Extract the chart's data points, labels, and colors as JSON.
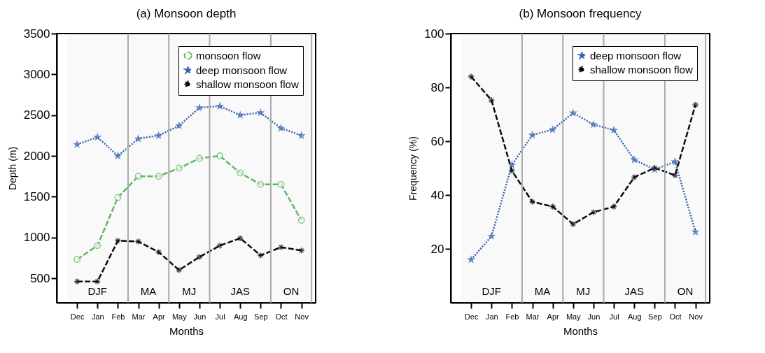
{
  "chart_data": [
    {
      "type": "line",
      "title": "(a) Monsoon depth",
      "xlabel": "Months",
      "ylabel": "Depth (m)",
      "categories": [
        "Dec",
        "Jan",
        "Feb",
        "Mar",
        "Apr",
        "May",
        "Jun",
        "Jul",
        "Aug",
        "Sep",
        "Oct",
        "Nov"
      ],
      "ylim": [
        200,
        3500
      ],
      "yticks": [
        500,
        1000,
        1500,
        2000,
        2500,
        3000,
        3500
      ],
      "series": [
        {
          "name": "monsoon flow",
          "color": "#5cb85c",
          "marker": "circle",
          "line_style": "dashed",
          "values": [
            730,
            900,
            1490,
            1750,
            1750,
            1850,
            1970,
            2000,
            1790,
            1650,
            1650,
            1210
          ]
        },
        {
          "name": "deep monsoon flow",
          "color": "#2f5fb3",
          "marker": "star",
          "line_style": "dotted",
          "values": [
            2140,
            2230,
            2000,
            2210,
            2250,
            2370,
            2590,
            2610,
            2500,
            2530,
            2340,
            2250
          ]
        },
        {
          "name": "shallow monsoon flow",
          "color": "#000000",
          "marker": "cross",
          "line_style": "dashed",
          "values": [
            460,
            460,
            960,
            950,
            820,
            600,
            760,
            900,
            990,
            780,
            880,
            840
          ]
        }
      ],
      "bands": [
        {
          "axis": "x",
          "from": "Dec",
          "to": "Feb",
          "label": "DJF",
          "color": "#aaaaaa"
        },
        {
          "axis": "x",
          "from": "Mar",
          "to": "Apr",
          "label": "MA",
          "color": "#aaaaaa"
        },
        {
          "axis": "x",
          "from": "May",
          "to": "Jun",
          "label": "MJ",
          "color": "#aaaaaa"
        },
        {
          "axis": "x",
          "from": "Jul",
          "to": "Sep",
          "label": "JAS",
          "color": "#aaaaaa"
        },
        {
          "axis": "x",
          "from": "Oct",
          "to": "Nov",
          "label": "ON",
          "color": "#aaaaaa"
        }
      ],
      "grid": false,
      "legend": "top right"
    },
    {
      "type": "line",
      "title": "(b) Monsoon frequency",
      "xlabel": "Months",
      "ylabel": "Frequency (%)",
      "categories": [
        "Dec",
        "Jan",
        "Feb",
        "Mar",
        "Apr",
        "May",
        "Jun",
        "Jul",
        "Aug",
        "Sep",
        "Oct",
        "Nov"
      ],
      "ylim": [
        0,
        100
      ],
      "yticks": [
        20,
        40,
        60,
        80,
        100
      ],
      "series": [
        {
          "name": "deep monsoon flow",
          "color": "#2f5fb3",
          "marker": "star",
          "line_style": "dotted",
          "values": [
            16,
            24.7,
            51.2,
            62.3,
            64.3,
            70.5,
            66.2,
            64.1,
            53.1,
            49.5,
            52.4,
            26.3
          ]
        },
        {
          "name": "shallow monsoon flow",
          "color": "#000000",
          "marker": "cross",
          "line_style": "dashed",
          "values": [
            84,
            75.2,
            49,
            37.5,
            35.7,
            29.2,
            33.6,
            35.7,
            46.6,
            50.1,
            47.3,
            73.5
          ]
        }
      ],
      "bands": [
        {
          "axis": "x",
          "from": "Dec",
          "to": "Feb",
          "label": "DJF",
          "color": "#aaaaaa"
        },
        {
          "axis": "x",
          "from": "Mar",
          "to": "Apr",
          "label": "MA",
          "color": "#aaaaaa"
        },
        {
          "axis": "x",
          "from": "May",
          "to": "Jun",
          "label": "MJ",
          "color": "#aaaaaa"
        },
        {
          "axis": "x",
          "from": "Jul",
          "to": "Sep",
          "label": "JAS",
          "color": "#aaaaaa"
        },
        {
          "axis": "x",
          "from": "Oct",
          "to": "Nov",
          "label": "ON",
          "color": "#aaaaaa"
        }
      ],
      "grid": false,
      "legend": "top right"
    }
  ]
}
